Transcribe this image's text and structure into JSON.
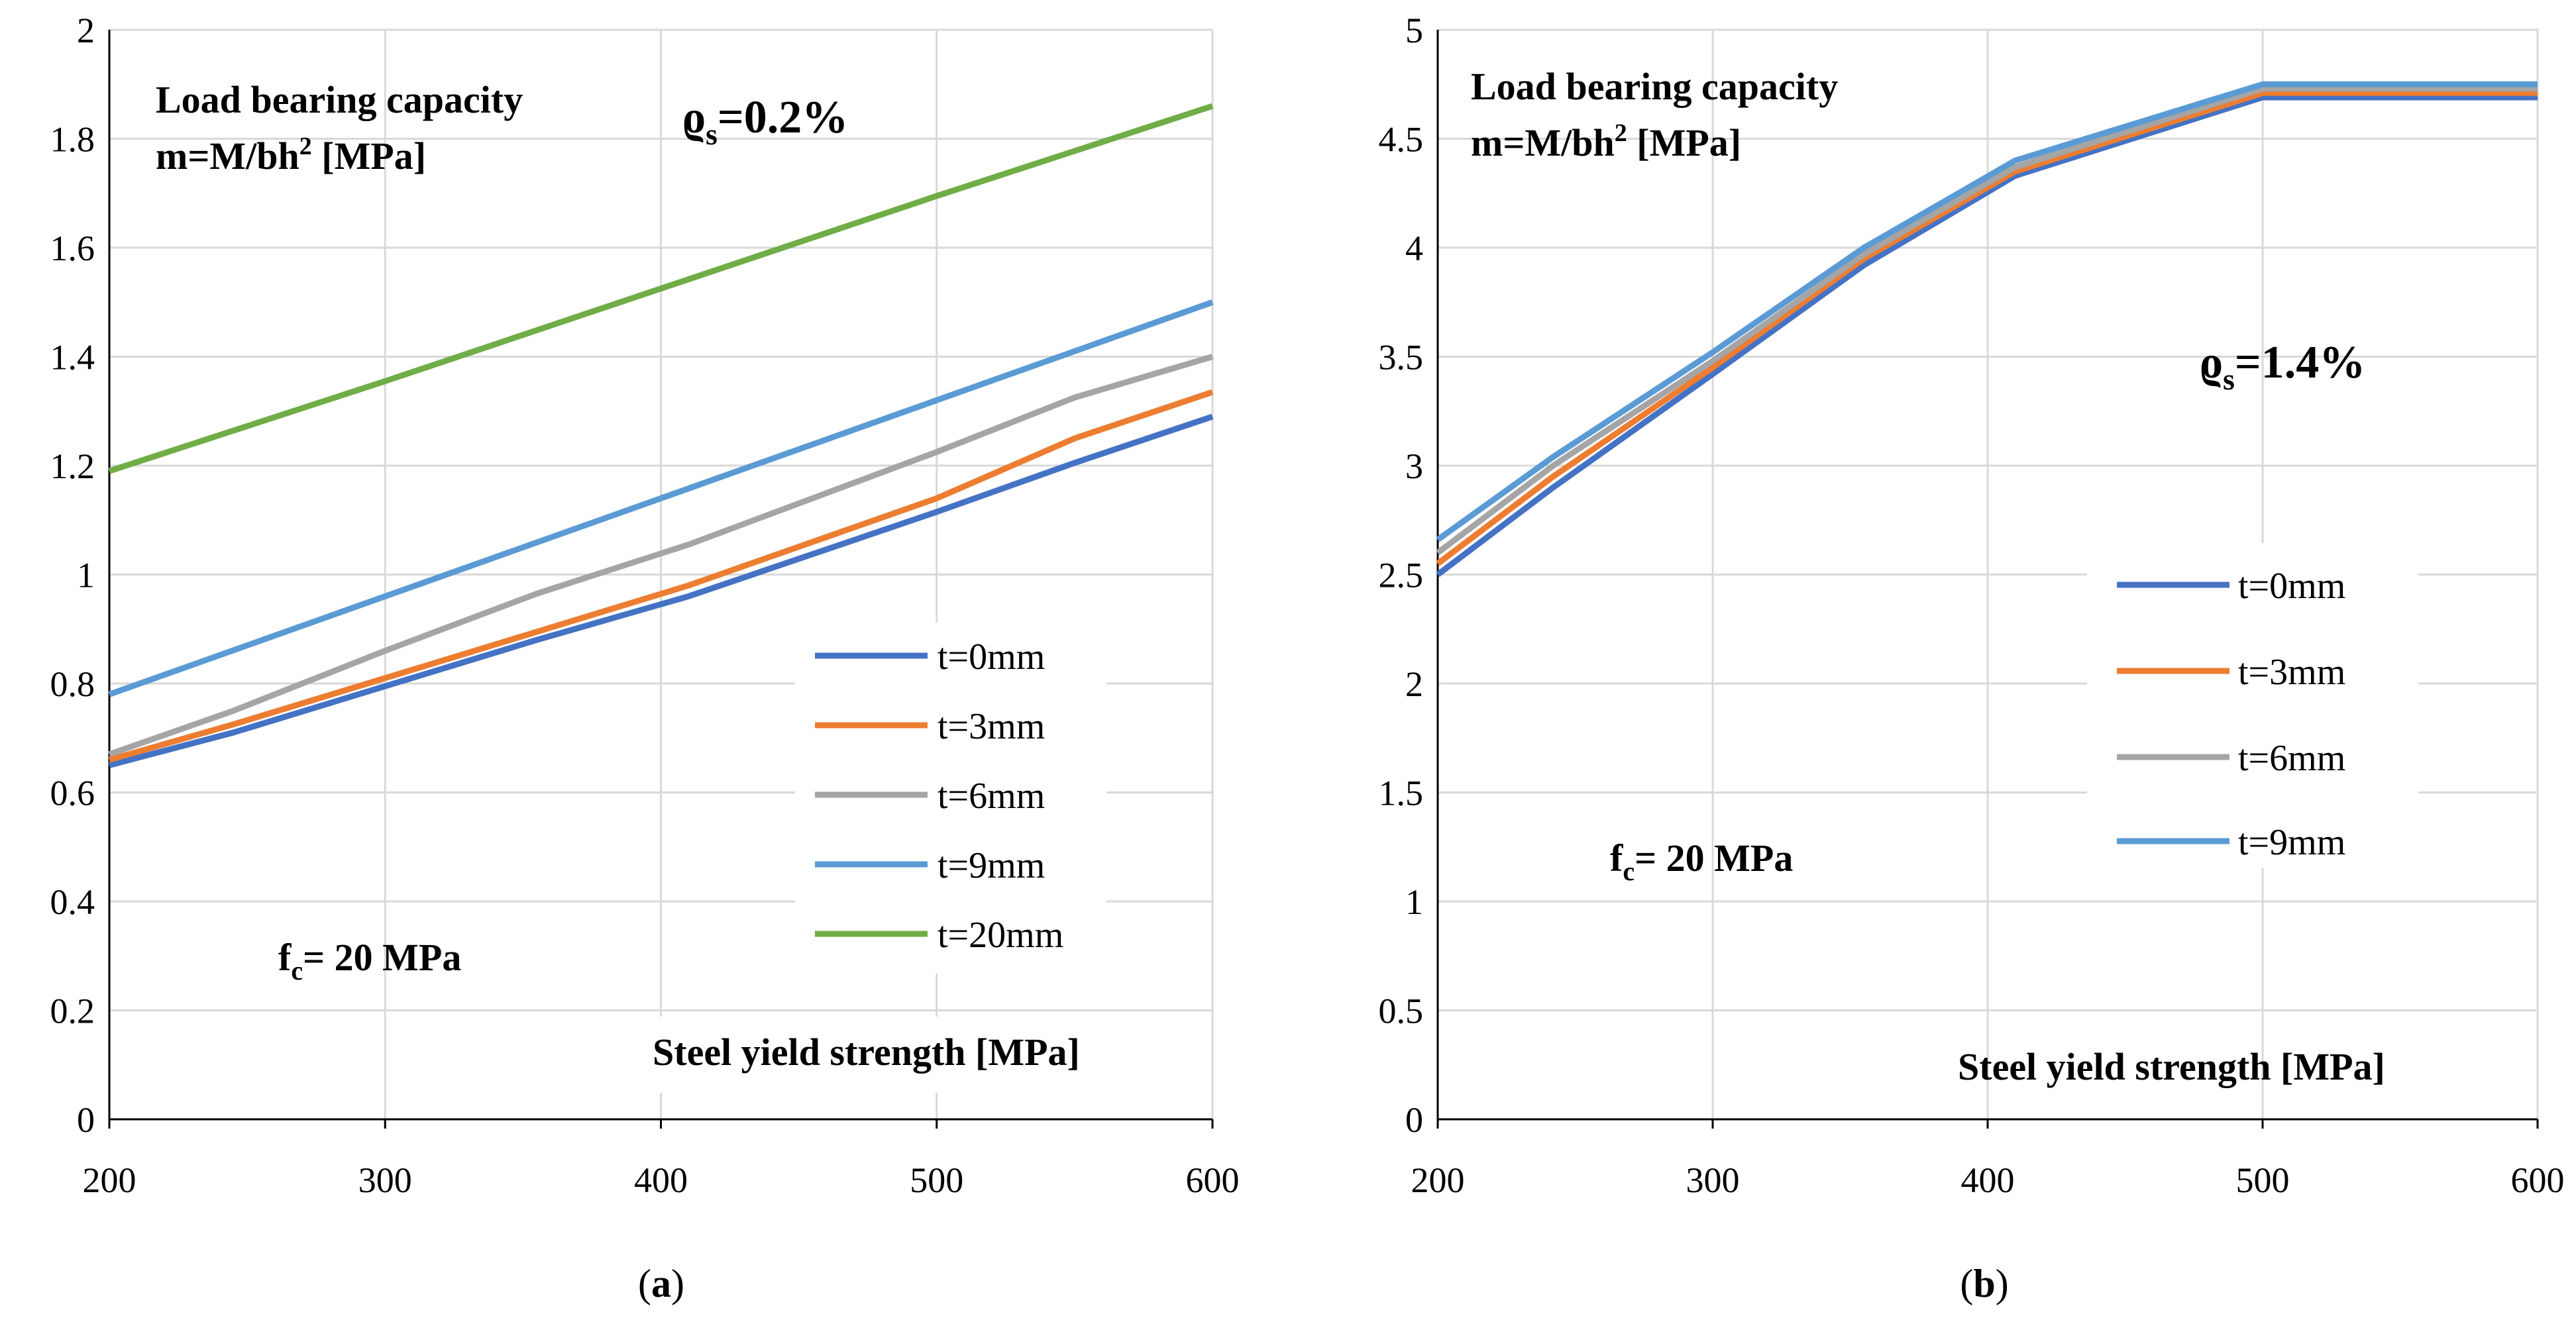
{
  "chart_data": [
    {
      "id": "a",
      "type": "line",
      "caption_open": "(",
      "caption_letter": "a",
      "caption_close": ")",
      "xlabel": "Steel yield strength [MPa]",
      "ylabel_line1": "Load bearing capacity",
      "ylabel_line2_prefix": "m=M/bh",
      "ylabel_line2_sup": "2",
      "ylabel_line2_suffix": " [MPa]",
      "rho_symbol": "ϱ",
      "rho_sub": "s",
      "rho_value": "=0.2%",
      "fc_symbol": "f",
      "fc_sub": "c",
      "fc_value": "= 20 MPa",
      "xlim": [
        200,
        600
      ],
      "ylim": [
        0,
        2
      ],
      "xticks": [
        200,
        300,
        400,
        500,
        600
      ],
      "yticks": [
        0,
        0.2,
        0.4,
        0.6,
        0.8,
        1,
        1.2,
        1.4,
        1.6,
        1.8,
        2
      ],
      "xtick_labels": [
        "200",
        "300",
        "400",
        "500",
        "600"
      ],
      "ytick_labels": [
        "0",
        "0.2",
        "0.4",
        "0.6",
        "0.8",
        "1",
        "1.2",
        "1.4",
        "1.6",
        "1.8",
        "2"
      ],
      "grid": true,
      "series": [
        {
          "name": "t=0mm",
          "color": "#4472C4",
          "x": [
            200,
            245,
            300,
            355,
            410,
            500,
            550,
            600
          ],
          "y": [
            0.65,
            0.71,
            0.795,
            0.88,
            0.96,
            1.115,
            1.205,
            1.29
          ]
        },
        {
          "name": "t=3mm",
          "color": "#ED7D31",
          "x": [
            200,
            245,
            300,
            355,
            410,
            500,
            550,
            600
          ],
          "y": [
            0.66,
            0.725,
            0.81,
            0.895,
            0.98,
            1.14,
            1.25,
            1.335
          ]
        },
        {
          "name": "t=6mm",
          "color": "#A5A5A5",
          "x": [
            200,
            245,
            300,
            355,
            410,
            500,
            550,
            600
          ],
          "y": [
            0.67,
            0.75,
            0.86,
            0.965,
            1.055,
            1.225,
            1.325,
            1.4
          ]
        },
        {
          "name": "t=9mm",
          "color": "#5B9BD5",
          "x": [
            200,
            300,
            400,
            500,
            600
          ],
          "y": [
            0.78,
            0.96,
            1.14,
            1.32,
            1.5
          ]
        },
        {
          "name": "t=20mm",
          "color": "#70AD47",
          "x": [
            200,
            300,
            400,
            500,
            600
          ],
          "y": [
            1.19,
            1.355,
            1.525,
            1.695,
            1.86
          ]
        }
      ]
    },
    {
      "id": "b",
      "type": "line",
      "caption_open": "(",
      "caption_letter": "b",
      "caption_close": ")",
      "xlabel": "Steel yield strength [MPa]",
      "ylabel_line1": "Load bearing capacity",
      "ylabel_line2_prefix": "m=M/bh",
      "ylabel_line2_sup": "2",
      "ylabel_line2_suffix": " [MPa]",
      "rho_symbol": "ϱ",
      "rho_sub": "s",
      "rho_value": "=1.4%",
      "fc_symbol": "f",
      "fc_sub": "c",
      "fc_value": "= 20 MPa",
      "xlim": [
        200,
        600
      ],
      "ylim": [
        0,
        5
      ],
      "xticks": [
        200,
        300,
        400,
        500,
        600
      ],
      "yticks": [
        0,
        0.5,
        1,
        1.5,
        2,
        2.5,
        3,
        3.5,
        4,
        4.5,
        5
      ],
      "xtick_labels": [
        "200",
        "300",
        "400",
        "500",
        "600"
      ],
      "ytick_labels": [
        "0",
        "0.5",
        "1",
        "1.5",
        "2",
        "2.5",
        "3",
        "3.5",
        "4",
        "4.5",
        "5"
      ],
      "grid": true,
      "series": [
        {
          "name": "t=0mm",
          "color": "#4472C4",
          "x": [
            200,
            242,
            300,
            355,
            410,
            500,
            600
          ],
          "y": [
            2.5,
            2.9,
            3.42,
            3.92,
            4.33,
            4.69,
            4.69
          ]
        },
        {
          "name": "t=3mm",
          "color": "#ED7D31",
          "x": [
            200,
            242,
            300,
            355,
            410,
            500,
            600
          ],
          "y": [
            2.55,
            2.95,
            3.45,
            3.95,
            4.35,
            4.71,
            4.71
          ]
        },
        {
          "name": "t=6mm",
          "color": "#A5A5A5",
          "x": [
            200,
            242,
            300,
            355,
            410,
            500,
            600
          ],
          "y": [
            2.6,
            3.0,
            3.48,
            3.97,
            4.37,
            4.73,
            4.73
          ]
        },
        {
          "name": "t=9mm",
          "color": "#5B9BD5",
          "x": [
            200,
            242,
            300,
            355,
            410,
            500,
            600
          ],
          "y": [
            2.66,
            3.04,
            3.52,
            4.0,
            4.4,
            4.75,
            4.75
          ]
        }
      ]
    }
  ]
}
